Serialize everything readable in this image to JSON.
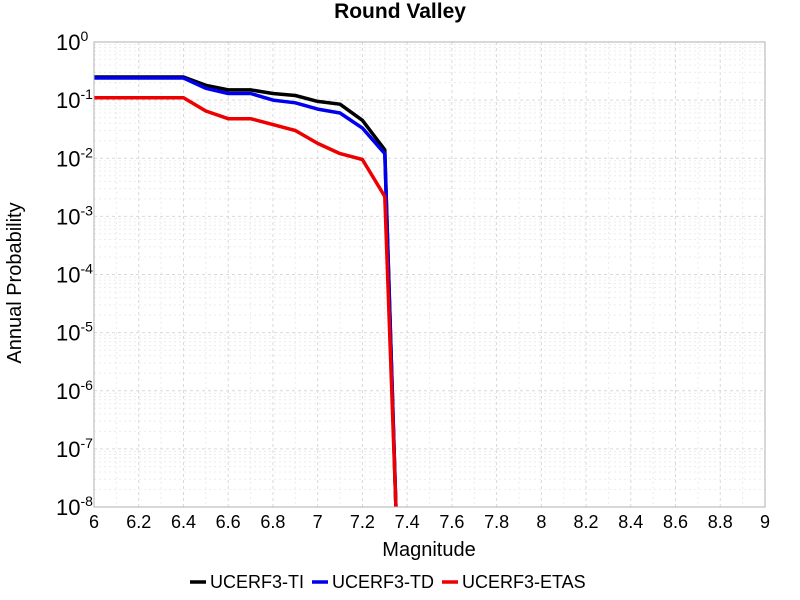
{
  "chart_data": {
    "type": "line",
    "title": "Round Valley",
    "xlabel": "Magnitude",
    "ylabel": "Annual Probability",
    "xlim": [
      6,
      9
    ],
    "ylim": [
      1e-08,
      1
    ],
    "yscale": "log",
    "grid": true,
    "legend_position": "bottom-center",
    "x_ticks": [
      "6",
      "6.2",
      "6.4",
      "6.6",
      "6.8",
      "7",
      "7.2",
      "7.4",
      "7.6",
      "7.8",
      "8",
      "8.2",
      "8.4",
      "8.6",
      "8.8",
      "9"
    ],
    "y_ticks": [
      {
        "base": "10",
        "exp": "0"
      },
      {
        "base": "10",
        "exp": "-1"
      },
      {
        "base": "10",
        "exp": "-2"
      },
      {
        "base": "10",
        "exp": "-3"
      },
      {
        "base": "10",
        "exp": "-4"
      },
      {
        "base": "10",
        "exp": "-5"
      },
      {
        "base": "10",
        "exp": "-6"
      },
      {
        "base": "10",
        "exp": "-7"
      },
      {
        "base": "10",
        "exp": "-8"
      }
    ],
    "series": [
      {
        "name": "UCERF3-TI",
        "color": "#000000",
        "x": [
          6.0,
          6.1,
          6.2,
          6.3,
          6.4,
          6.5,
          6.6,
          6.7,
          6.8,
          6.9,
          7.0,
          7.1,
          7.2,
          7.3,
          7.35
        ],
        "y": [
          0.25,
          0.25,
          0.25,
          0.25,
          0.25,
          0.18,
          0.15,
          0.15,
          0.13,
          0.12,
          0.095,
          0.085,
          0.045,
          0.014,
          1e-08
        ]
      },
      {
        "name": "UCERF3-TD",
        "color": "#0000ee",
        "x": [
          6.0,
          6.1,
          6.2,
          6.3,
          6.4,
          6.5,
          6.6,
          6.7,
          6.8,
          6.9,
          7.0,
          7.1,
          7.2,
          7.3,
          7.35
        ],
        "y": [
          0.24,
          0.24,
          0.24,
          0.24,
          0.24,
          0.16,
          0.13,
          0.13,
          0.1,
          0.09,
          0.07,
          0.06,
          0.033,
          0.012,
          1e-08
        ]
      },
      {
        "name": "UCERF3-ETAS",
        "color": "#ee0000",
        "x": [
          6.0,
          6.1,
          6.2,
          6.3,
          6.4,
          6.5,
          6.6,
          6.7,
          6.8,
          6.9,
          7.0,
          7.1,
          7.2,
          7.3,
          7.35
        ],
        "y": [
          0.11,
          0.11,
          0.11,
          0.11,
          0.11,
          0.065,
          0.048,
          0.048,
          0.038,
          0.03,
          0.018,
          0.012,
          0.0095,
          0.0022,
          1e-08
        ]
      }
    ]
  }
}
